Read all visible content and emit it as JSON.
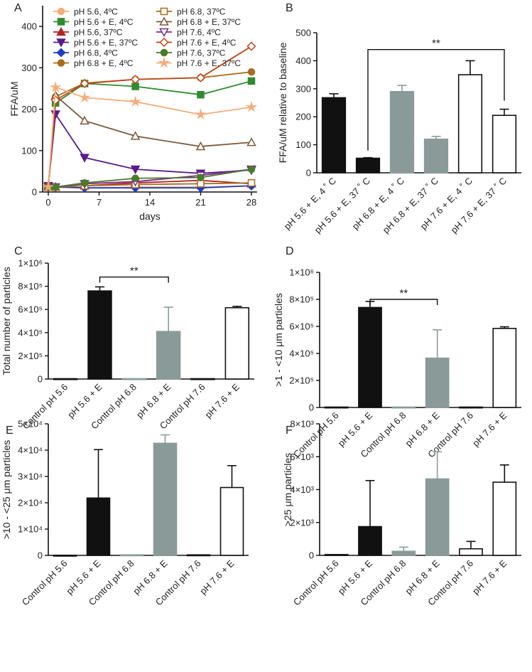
{
  "chart_data": [
    {
      "panel": "A",
      "type": "line",
      "xlabel": "days",
      "ylabel": "FFA/uM",
      "xlim": [
        0,
        28
      ],
      "ylim": [
        0,
        450
      ],
      "xticks": [
        0,
        7,
        14,
        21,
        28
      ],
      "yticks": [
        0,
        100,
        200,
        300,
        400
      ],
      "x": [
        0,
        1,
        5,
        12,
        21,
        28
      ],
      "series": [
        {
          "name": "pH 5.6, 4ºC",
          "color": "#f4ad7a",
          "marker": "circle",
          "filled": true,
          "values": [
            15,
            12,
            10,
            12,
            12,
            15
          ]
        },
        {
          "name": "pH 5.6 + E, 4ºC",
          "color": "#2e8b2e",
          "marker": "square",
          "filled": true,
          "values": [
            15,
            215,
            262,
            255,
            235,
            268
          ]
        },
        {
          "name": "pH 5.6, 37ºC",
          "color": "#b22222",
          "marker": "triangle-up",
          "filled": true,
          "values": [
            15,
            12,
            15,
            22,
            28,
            20
          ]
        },
        {
          "name": "pH 5.6 + E, 37ºC",
          "color": "#5a1a8c",
          "marker": "triangle-down",
          "filled": true,
          "values": [
            15,
            188,
            83,
            55,
            45,
            53
          ]
        },
        {
          "name": "pH 6.8, 4ºC",
          "color": "#1f3fbf",
          "marker": "diamond",
          "filled": true,
          "values": [
            15,
            12,
            10,
            10,
            10,
            15
          ]
        },
        {
          "name": "pH 6.8 + E, 4ºC",
          "color": "#a86c1c",
          "marker": "circle",
          "filled": true,
          "values": [
            15,
            230,
            263,
            272,
            276,
            290
          ]
        },
        {
          "name": "pH 6.8, 37ºC",
          "color": "#a86c1c",
          "marker": "square",
          "filled": false,
          "values": [
            12,
            12,
            15,
            18,
            20,
            22
          ]
        },
        {
          "name": "pH 6.8 + E, 37ºC",
          "color": "#7b5a3a",
          "marker": "triangle-up",
          "filled": false,
          "values": [
            12,
            233,
            172,
            135,
            110,
            120
          ]
        },
        {
          "name": "pH 7.6, 4ºC",
          "color": "#7a2a8a",
          "marker": "triangle-down",
          "filled": false,
          "values": [
            12,
            12,
            20,
            25,
            40,
            55
          ]
        },
        {
          "name": "pH 7.6 + E, 4ºC",
          "color": "#c04818",
          "marker": "diamond",
          "filled": false,
          "values": [
            12,
            222,
            262,
            272,
            276,
            352
          ]
        },
        {
          "name": "pH 7.6, 37ºC",
          "color": "#4a7a2a",
          "marker": "circle",
          "filled": true,
          "values": [
            12,
            12,
            22,
            33,
            35,
            55
          ]
        },
        {
          "name": "pH 7.6 + E, 37ºC",
          "color": "#f4ad7a",
          "marker": "star",
          "filled": true,
          "values": [
            12,
            253,
            228,
            218,
            187,
            205
          ]
        }
      ]
    },
    {
      "panel": "B",
      "type": "bar",
      "ylabel": "FFA/uM relative to baseline",
      "ylim": [
        0,
        500
      ],
      "yticks": [
        0,
        100,
        200,
        300,
        400,
        500
      ],
      "categories": [
        "pH 5.6 + E, 4 ˚ C",
        "pH 5.6 + E, 37 ˚ C",
        "pH 6.8 + E, 4 ˚ C",
        "pH 6.8 + E, 37 ˚ C",
        "pH 7.6 + E, 4 ˚ C",
        "pH 7.6 + E, 37 ˚ C"
      ],
      "values": [
        268,
        52,
        290,
        120,
        350,
        205
      ],
      "errors": [
        14,
        2,
        22,
        10,
        50,
        22
      ],
      "fills": [
        "#111111",
        "#111111",
        "#8a9a99",
        "#8a9a99",
        "#ffffff",
        "#ffffff"
      ],
      "significance": {
        "from": 1,
        "to": 5,
        "label": "**",
        "y": 440
      }
    },
    {
      "panel": "C",
      "type": "bar",
      "ylabel": "Total number of particles",
      "ylim": [
        0,
        1000000
      ],
      "yticks": [
        0,
        200000,
        400000,
        600000,
        800000,
        1000000
      ],
      "ytick_labels": [
        "0",
        "2×10⁵",
        "4×10⁵",
        "6×10⁵",
        "8×10⁵",
        "1×10⁶"
      ],
      "categories": [
        "Control pH 5.6",
        "pH 5.6 + E",
        "Control pH 6.8",
        "pH 6.8 + E",
        "Control pH 7.6",
        "pH 7.6 + E"
      ],
      "values": [
        3000,
        760000,
        3000,
        410000,
        3000,
        615000
      ],
      "errors": [
        0,
        35000,
        0,
        210000,
        0,
        12000
      ],
      "fills": [
        "#111111",
        "#111111",
        "#8a9a99",
        "#8a9a99",
        "#ffffff",
        "#ffffff"
      ],
      "significance": {
        "from": 1,
        "to": 3,
        "label": "**",
        "y": 880000
      }
    },
    {
      "panel": "D",
      "type": "bar",
      "ylabel": ">1 - <10 μm particles",
      "ylim": [
        0,
        1000000
      ],
      "yticks": [
        0,
        200000,
        400000,
        600000,
        800000,
        1000000
      ],
      "ytick_labels": [
        "0",
        "2×10⁵",
        "4×10⁵",
        "6×10⁵",
        "8×10⁵",
        "1×10⁶"
      ],
      "categories": [
        "Control pH 5.6",
        "pH 5.6 + E",
        "Control pH 6.8",
        "pH 6.8 + E",
        "Control pH 7.6",
        "pH 7.6 + E"
      ],
      "values": [
        3000,
        740000,
        3000,
        365000,
        3000,
        585000
      ],
      "errors": [
        0,
        45000,
        0,
        210000,
        0,
        12000
      ],
      "fills": [
        "#111111",
        "#111111",
        "#8a9a99",
        "#8a9a99",
        "#ffffff",
        "#ffffff"
      ],
      "significance": {
        "from": 1,
        "to": 3,
        "label": "**",
        "y": 800000
      }
    },
    {
      "panel": "E",
      "type": "bar",
      "ylabel": ">10 - <25 μm particles",
      "ylim": [
        0,
        50000
      ],
      "yticks": [
        0,
        10000,
        20000,
        30000,
        40000,
        50000
      ],
      "ytick_labels": [
        "0",
        "1×10⁴",
        "2×10⁴",
        "3×10⁴",
        "4×10⁴",
        "5×10⁴"
      ],
      "categories": [
        "Control pH 5.6",
        "pH 5.6 + E",
        "Control pH 6.8",
        "pH 6.8 + E",
        "Control pH 7.6",
        "pH 7.6 + E"
      ],
      "values": [
        50,
        21800,
        200,
        42600,
        200,
        25800
      ],
      "errors": [
        0,
        18400,
        0,
        3200,
        0,
        8300
      ],
      "fills": [
        "#111111",
        "#111111",
        "#8a9a99",
        "#8a9a99",
        "#ffffff",
        "#ffffff"
      ]
    },
    {
      "panel": "F",
      "type": "bar",
      "ylabel": ">25 μm particles",
      "ylim": [
        0,
        8000
      ],
      "yticks": [
        0,
        2000,
        4000,
        6000,
        8000
      ],
      "ytick_labels": [
        "0",
        "2×10³",
        "4×10³",
        "6×10³",
        "8×10³"
      ],
      "categories": [
        "Control pH 5.6",
        "pH 5.6 + E",
        "Control pH 6.8",
        "pH 6.8 + E",
        "Control pH 7.6",
        "pH 7.6 + E"
      ],
      "values": [
        50,
        1750,
        250,
        4650,
        400,
        4450
      ],
      "errors": [
        0,
        2800,
        250,
        1650,
        450,
        1050
      ],
      "fills": [
        "#111111",
        "#111111",
        "#8a9a99",
        "#8a9a99",
        "#ffffff",
        "#ffffff"
      ]
    }
  ]
}
